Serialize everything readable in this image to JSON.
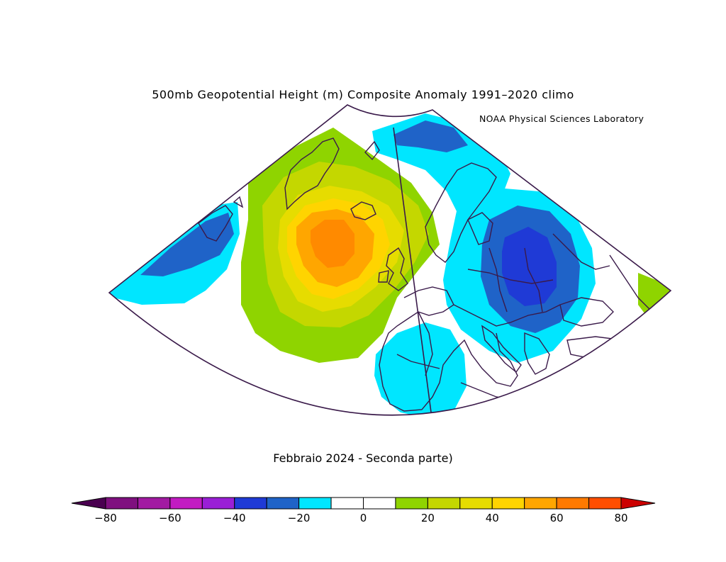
{
  "title": "500mb Geopotential Height (m) Composite Anomaly 1991–2020 climo",
  "credit": "NOAA Physical Sciences Laboratory",
  "subtitle": "Febbraio 2024 - Seconda parte)",
  "colorbar": {
    "min": -80,
    "max": 80,
    "step": 10,
    "tick_labels": [
      "−80",
      "−60",
      "−40",
      "−20",
      "0",
      "20",
      "40",
      "60",
      "80"
    ],
    "colors": [
      "#7f107f",
      "#a21aa2",
      "#c21bc2",
      "#9a1fd6",
      "#1f3ad6",
      "#1f63c8",
      "#00e6ff",
      "#ffffff",
      "#ffffff",
      "#8fd400",
      "#c4d700",
      "#e6dc00",
      "#ffd400",
      "#ffa600",
      "#ff7a00",
      "#ff4e00"
    ],
    "under_color": "#4a0050",
    "over_color": "#cc0000"
  },
  "palette": {
    "cyan": "#00e6ff",
    "blue": "#1f63c8",
    "darkblue": "#1f3ad6",
    "green": "#8fd400",
    "yellowgreen": "#c4d700",
    "yellow": "#e6dc00",
    "gold": "#ffd400",
    "orange": "#ffa600",
    "darkorange": "#ff8a00",
    "coast": "#3a1a4a"
  }
}
